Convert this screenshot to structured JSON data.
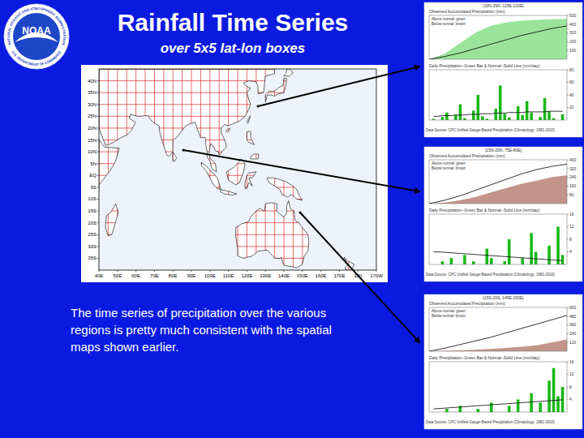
{
  "slide": {
    "title": "Rainfall Time Series",
    "subtitle": "over 5x5 lat-lon boxes",
    "caption": [
      "The time series of  precipitation over the various",
      "regions is pretty much consistent with the spatial",
      "maps shown earlier."
    ]
  },
  "logo": {
    "text": "NOAA",
    "ring_top": "NATIONAL OCEANIC AND ATMOSPHERIC ADMINISTRATION",
    "ring_bottom": "U.S. DEPARTMENT OF COMMERCE"
  },
  "map": {
    "box_size_deg": 5,
    "lon_range": [
      40,
      190
    ],
    "lat_range": [
      -40,
      45
    ],
    "lat_ticks": [
      {
        "value": 40,
        "label": "40N"
      },
      {
        "value": 35,
        "label": "35N"
      },
      {
        "value": 30,
        "label": "30N"
      },
      {
        "value": 25,
        "label": "25N"
      },
      {
        "value": 20,
        "label": "20N"
      },
      {
        "value": 15,
        "label": "15N"
      },
      {
        "value": 10,
        "label": "10N"
      },
      {
        "value": 5,
        "label": "5N"
      },
      {
        "value": 0,
        "label": "EQ"
      },
      {
        "value": -5,
        "label": "5S"
      },
      {
        "value": -10,
        "label": "10S"
      },
      {
        "value": -15,
        "label": "15S"
      },
      {
        "value": -20,
        "label": "20S"
      },
      {
        "value": -25,
        "label": "25S"
      },
      {
        "value": -30,
        "label": "30S"
      },
      {
        "value": -35,
        "label": "35S"
      }
    ],
    "lon_ticks": [
      {
        "value": 40,
        "label": "40E"
      },
      {
        "value": 50,
        "label": "50E"
      },
      {
        "value": 60,
        "label": "60E"
      },
      {
        "value": 70,
        "label": "70E"
      },
      {
        "value": 80,
        "label": "80E"
      },
      {
        "value": 90,
        "label": "90E"
      },
      {
        "value": 100,
        "label": "100E"
      },
      {
        "value": 110,
        "label": "110E"
      },
      {
        "value": 120,
        "label": "120E"
      },
      {
        "value": 130,
        "label": "130E"
      },
      {
        "value": 140,
        "label": "140E"
      },
      {
        "value": 150,
        "label": "150E"
      },
      {
        "value": 160,
        "label": "160E"
      },
      {
        "value": 170,
        "label": "170E"
      },
      {
        "value": 180,
        "label": "180"
      },
      {
        "value": 190,
        "label": "170W"
      }
    ]
  },
  "panels": [
    {
      "header": "(30N-35N, 115E-120E)",
      "source": "Data Source: CPC Unified Gauge-Based Precipitation (Climatology: 1981-2010)"
    },
    {
      "header": "(15N-20N, 75E-80E)",
      "source": "Data Source: CPC Unified Gauge-Based Precipitation (Climatology: 1981-2010)"
    },
    {
      "header": "(15S-20S, 145E-150E)",
      "source": "Data Source: CPC Unified Gauge-Based Precipitation (Climatology: 1981-2010)"
    }
  ],
  "chart_data": [
    {
      "type": "line",
      "title": "Observed Accumulated Precipitation (mm)",
      "annotations": [
        "Above normal: green",
        "Below normal: brown"
      ],
      "x": [
        0,
        10,
        20,
        30,
        40,
        50,
        60,
        70,
        80,
        90
      ],
      "xlim": [
        0,
        90
      ],
      "ylim": [
        0,
        500
      ],
      "yticks": [
        100,
        200,
        300,
        400,
        500
      ],
      "tick_labels": "y",
      "series": [
        {
          "type": "area",
          "color": "#9be39b",
          "values": [
            0,
            60,
            180,
            300,
            380,
            420,
            440,
            450,
            455,
            460
          ]
        },
        {
          "type": "line",
          "color": "#000000",
          "values": [
            0,
            30,
            70,
            120,
            170,
            220,
            270,
            310,
            350,
            380
          ]
        }
      ]
    },
    {
      "type": "bar",
      "title": "Daily Precipitation--Green Bar & Normal--Solid Line (mm/day)",
      "x": [
        1,
        2,
        3,
        4,
        5,
        6,
        7,
        8,
        9,
        10,
        11,
        12,
        13,
        14,
        15,
        16,
        17,
        18,
        19,
        20,
        21,
        22,
        23,
        24,
        25,
        26,
        27,
        28,
        29,
        30
      ],
      "xlim": [
        0,
        31
      ],
      "ylim": [
        0,
        80
      ],
      "yticks": [
        20,
        40,
        60,
        80
      ],
      "tick_labels": "y",
      "series": [
        {
          "type": "bar",
          "color": "#18b818",
          "values": [
            2,
            0,
            5,
            12,
            0,
            8,
            25,
            3,
            0,
            15,
            40,
            6,
            2,
            0,
            18,
            55,
            10,
            4,
            0,
            22,
            8,
            30,
            12,
            0,
            5,
            35,
            14,
            3,
            0,
            9
          ]
        },
        {
          "type": "line",
          "color": "#000000",
          "values": [
            6,
            6,
            7,
            7,
            7,
            8,
            8,
            8,
            9,
            9,
            9,
            10,
            10,
            10,
            11,
            11,
            11,
            12,
            12,
            12,
            12,
            13,
            13,
            13,
            13,
            13,
            14,
            14,
            14,
            14
          ]
        }
      ]
    },
    {
      "type": "line",
      "title": "Observed Accumulated Precipitation (mm)",
      "annotations": [
        "Above normal: green",
        "Below normal: brown"
      ],
      "x": [
        0,
        10,
        20,
        30,
        40,
        50,
        60,
        70,
        80,
        90
      ],
      "xlim": [
        0,
        90
      ],
      "ylim": [
        0,
        400
      ],
      "yticks": [
        80,
        160,
        240,
        320,
        400
      ],
      "tick_labels": "y",
      "series": [
        {
          "type": "area",
          "color": "#c3958a",
          "values": [
            0,
            10,
            30,
            60,
            100,
            140,
            180,
            210,
            240,
            260
          ]
        },
        {
          "type": "line",
          "color": "#000000",
          "values": [
            0,
            30,
            70,
            120,
            170,
            220,
            270,
            310,
            340,
            360
          ]
        }
      ]
    },
    {
      "type": "bar",
      "title": "Daily Precipitation--Green Bar & Normal--Solid Line (mm/day)",
      "x": [
        1,
        2,
        3,
        4,
        5,
        6,
        7,
        8,
        9,
        10,
        11,
        12,
        13,
        14,
        15,
        16,
        17,
        18,
        19,
        20,
        21,
        22,
        23,
        24,
        25,
        26,
        27,
        28,
        29,
        30
      ],
      "xlim": [
        0,
        31
      ],
      "ylim": [
        0,
        16
      ],
      "yticks": [
        4,
        8,
        12,
        16
      ],
      "tick_labels": "y",
      "series": [
        {
          "type": "bar",
          "color": "#18b818",
          "values": [
            0,
            0,
            1,
            0,
            2,
            0,
            0,
            3,
            0,
            1,
            0,
            0,
            5,
            2,
            0,
            0,
            1,
            8,
            0,
            0,
            2,
            0,
            10,
            4,
            0,
            0,
            6,
            0,
            12,
            3
          ]
        },
        {
          "type": "line",
          "color": "#000000",
          "values": [
            4,
            4,
            3.9,
            3.8,
            3.7,
            3.6,
            3.5,
            3.4,
            3.3,
            3.2,
            3.1,
            3,
            2.9,
            2.8,
            2.7,
            2.6,
            2.5,
            2.4,
            2.3,
            2.2,
            2.1,
            2,
            1.9,
            1.8,
            1.7,
            1.6,
            1.5,
            1.4,
            1.3,
            1.2
          ]
        }
      ]
    },
    {
      "type": "line",
      "title": "Observed Accumulated Precipitation (mm)",
      "annotations": [
        "Above normal: green",
        "Below normal: brown"
      ],
      "x": [
        0,
        10,
        20,
        30,
        40,
        50,
        60,
        70,
        80,
        90
      ],
      "xlim": [
        0,
        90
      ],
      "ylim": [
        0,
        600
      ],
      "yticks": [
        120,
        240,
        360,
        480,
        600
      ],
      "tick_labels": "y",
      "series": [
        {
          "type": "area",
          "color": "#c3958a",
          "values": [
            0,
            5,
            10,
            20,
            30,
            45,
            60,
            80,
            120,
            160
          ]
        },
        {
          "type": "line",
          "color": "#000000",
          "values": [
            0,
            40,
            90,
            140,
            190,
            250,
            310,
            370,
            430,
            490
          ]
        }
      ]
    },
    {
      "type": "bar",
      "title": "Daily Precipitation--Green Bar & Normal--Solid Line (mm/day)",
      "x": [
        1,
        2,
        3,
        4,
        5,
        6,
        7,
        8,
        9,
        10,
        11,
        12,
        13,
        14,
        15,
        16,
        17,
        18,
        19,
        20,
        21,
        22,
        23,
        24,
        25,
        26,
        27,
        28,
        29,
        30
      ],
      "xlim": [
        0,
        31
      ],
      "ylim": [
        0,
        16
      ],
      "yticks": [
        4,
        8,
        12,
        16
      ],
      "tick_labels": "y",
      "series": [
        {
          "type": "bar",
          "color": "#18b818",
          "values": [
            0,
            0,
            0,
            1,
            0,
            0,
            2,
            0,
            0,
            0,
            1,
            0,
            0,
            3,
            0,
            0,
            0,
            2,
            0,
            4,
            0,
            0,
            6,
            0,
            3,
            0,
            10,
            14,
            5,
            8
          ]
        },
        {
          "type": "line",
          "color": "#000000",
          "values": [
            1,
            1.1,
            1.2,
            1.3,
            1.4,
            1.5,
            1.6,
            1.7,
            1.8,
            1.9,
            2,
            2.1,
            2.2,
            2.3,
            2.4,
            2.5,
            2.6,
            2.7,
            2.8,
            2.9,
            3,
            3.1,
            3.2,
            3.3,
            3.4,
            3.5,
            3.6,
            3.7,
            3.8,
            3.9
          ]
        }
      ]
    }
  ]
}
